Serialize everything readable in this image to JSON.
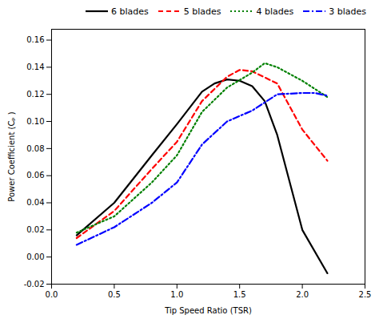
{
  "chart_data": {
    "type": "line",
    "xlabel": "Tip Speed Ratio (TSR)",
    "ylabel": "Power Coefficient (Cₚ )",
    "xlim": [
      0.0,
      2.5
    ],
    "ylim": [
      -0.02,
      0.168
    ],
    "xticks": [
      {
        "value": 0.0,
        "label": "0.0"
      },
      0.5,
      {
        "value": 1.0,
        "label": "1.0"
      },
      1.5,
      {
        "value": 2.0,
        "label": "2.0"
      },
      2.5
    ],
    "yticks": [
      -0.02,
      {
        "value": 0.0,
        "label": "0.00"
      },
      0.02,
      0.04,
      0.06,
      0.08,
      {
        "value": 0.1,
        "label": "0.10"
      },
      0.12,
      0.14,
      0.16
    ],
    "grid": false,
    "legend": "upper right",
    "series": [
      {
        "name": "6 blades",
        "color": "#000000",
        "line_style": "solid",
        "x": [
          0.2,
          0.5,
          0.8,
          1.0,
          1.2,
          1.3,
          1.4,
          1.5,
          1.6,
          1.7,
          1.8,
          2.0,
          2.2
        ],
        "values": [
          0.016,
          0.04,
          0.075,
          0.098,
          0.122,
          0.128,
          0.131,
          0.13,
          0.126,
          0.115,
          0.09,
          0.02,
          -0.012
        ]
      },
      {
        "name": "5 blades",
        "color": "#ff0000",
        "line_style": "dashed",
        "x": [
          0.2,
          0.5,
          0.8,
          1.0,
          1.2,
          1.4,
          1.5,
          1.6,
          1.8,
          2.0,
          2.2
        ],
        "values": [
          0.014,
          0.034,
          0.065,
          0.085,
          0.115,
          0.133,
          0.138,
          0.137,
          0.128,
          0.094,
          0.071
        ]
      },
      {
        "name": "4 blades",
        "color": "#008000",
        "line_style": "dotted",
        "x": [
          0.2,
          0.5,
          0.8,
          1.0,
          1.2,
          1.4,
          1.6,
          1.7,
          1.8,
          2.0,
          2.2
        ],
        "values": [
          0.018,
          0.03,
          0.055,
          0.075,
          0.107,
          0.125,
          0.136,
          0.143,
          0.14,
          0.13,
          0.118
        ]
      },
      {
        "name": "3 blades",
        "color": "#0000ff",
        "line_style": "dashdot",
        "x": [
          0.2,
          0.5,
          0.8,
          1.0,
          1.2,
          1.4,
          1.6,
          1.8,
          2.0,
          2.1,
          2.2
        ],
        "values": [
          0.009,
          0.022,
          0.04,
          0.055,
          0.083,
          0.1,
          0.108,
          0.12,
          0.121,
          0.121,
          0.119
        ]
      }
    ]
  }
}
